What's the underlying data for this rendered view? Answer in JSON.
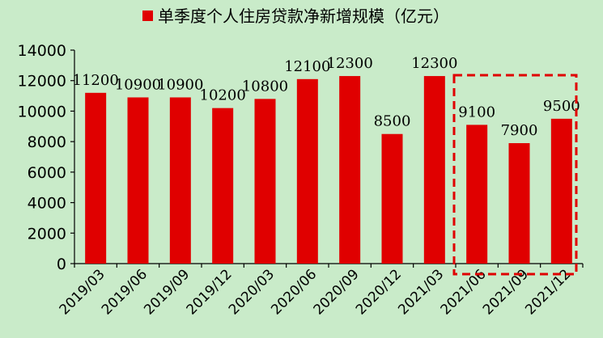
{
  "chart_data": {
    "type": "bar",
    "legend": {
      "label": "单季度个人住房贷款净新增规模（亿元）",
      "position": "top",
      "color": "#e00000"
    },
    "categories": [
      "2019/03",
      "2019/06",
      "2019/09",
      "2019/12",
      "2020/03",
      "2020/06",
      "2020/09",
      "2020/12",
      "2021/03",
      "2021/06",
      "2021/09",
      "2021/12"
    ],
    "series": [
      {
        "name": "单季度个人住房贷款净新增规模（亿元）",
        "values": [
          11200,
          10900,
          10900,
          10200,
          10800,
          12100,
          12300,
          8500,
          12300,
          9100,
          7900,
          9500
        ],
        "color": "#e00000"
      }
    ],
    "data_labels": [
      "11200",
      "10900",
      "10900",
      "10200",
      "10800",
      "12100",
      "12300",
      "8500",
      "12300",
      "9100",
      "7900",
      "9500"
    ],
    "ylim": [
      0,
      14000
    ],
    "y_ticks": [
      "0",
      "2000",
      "4000",
      "6000",
      "8000",
      "10000",
      "12000",
      "14000"
    ],
    "grid": false,
    "highlight": {
      "style": "dashed-box",
      "color": "#e00000",
      "categories": [
        "2021/06",
        "2021/09",
        "2021/12"
      ]
    }
  }
}
